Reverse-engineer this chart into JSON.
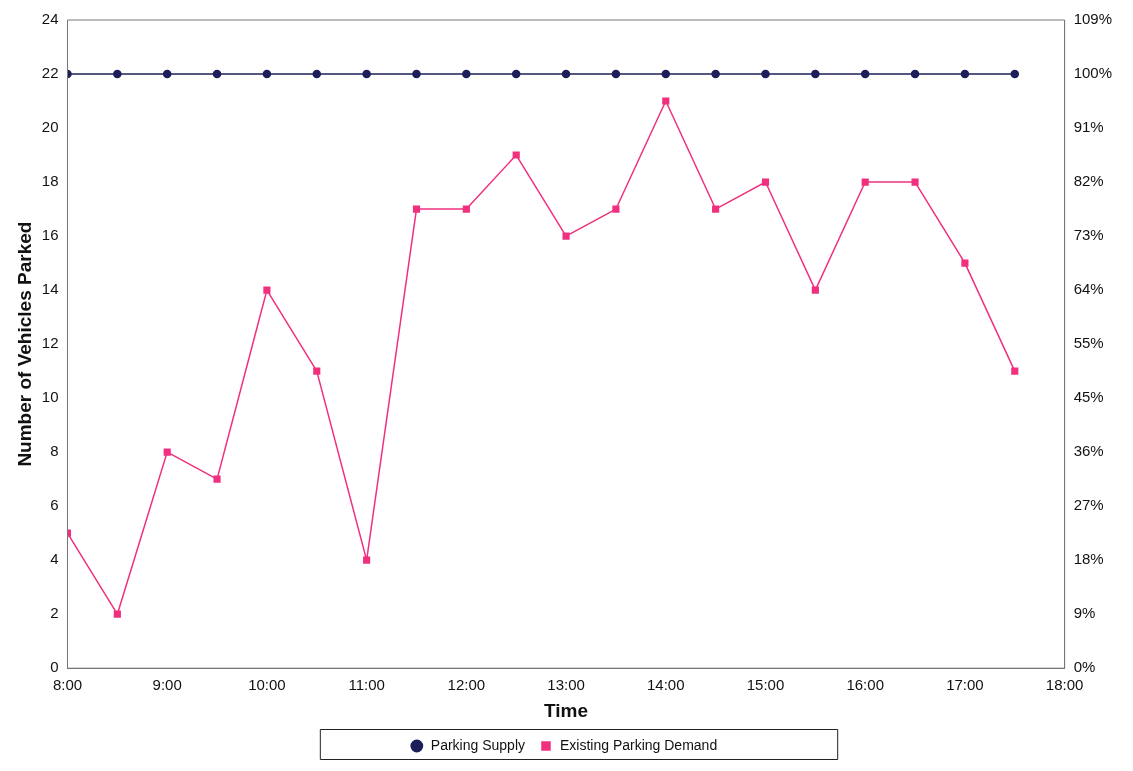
{
  "chart_data": {
    "type": "line",
    "xlabel": "Time",
    "ylabel": "Number of Vehicles Parked",
    "x": [
      8,
      8.5,
      9,
      9.5,
      10,
      10.5,
      11,
      11.5,
      12,
      12.5,
      13,
      13.5,
      14,
      14.5,
      15,
      15.5,
      16,
      16.5,
      17,
      17.5
    ],
    "series": [
      {
        "name": "Parking Supply",
        "color": "#1c1f5a",
        "marker": "circle",
        "values": [
          22,
          22,
          22,
          22,
          22,
          22,
          22,
          22,
          22,
          22,
          22,
          22,
          22,
          22,
          22,
          22,
          22,
          22,
          22,
          22
        ]
      },
      {
        "name": "Existing Parking Demand",
        "color": "#f0307f",
        "marker": "square",
        "values": [
          5,
          2,
          8,
          7,
          14,
          11,
          4,
          17,
          17,
          19,
          16,
          17,
          21,
          17,
          18,
          14,
          18,
          18,
          15,
          11
        ]
      }
    ],
    "xlim": [
      8,
      18
    ],
    "xticks": [
      {
        "value": 8,
        "label": "8:00"
      },
      {
        "value": 9,
        "label": "9:00"
      },
      {
        "value": 10,
        "label": "10:00"
      },
      {
        "value": 11,
        "label": "11:00"
      },
      {
        "value": 12,
        "label": "12:00"
      },
      {
        "value": 13,
        "label": "13:00"
      },
      {
        "value": 14,
        "label": "14:00"
      },
      {
        "value": 15,
        "label": "15:00"
      },
      {
        "value": 16,
        "label": "16:00"
      },
      {
        "value": 17,
        "label": "17:00"
      },
      {
        "value": 18,
        "label": "18:00"
      }
    ],
    "ylim": [
      0,
      24
    ],
    "yticks": [
      0,
      2,
      4,
      6,
      8,
      10,
      12,
      14,
      16,
      18,
      20,
      22,
      24
    ],
    "y2lim": [
      0,
      109.09
    ],
    "y2ticks": [
      {
        "value": 0,
        "label": "0%"
      },
      {
        "value": 9.09,
        "label": "9%"
      },
      {
        "value": 18.18,
        "label": "18%"
      },
      {
        "value": 27.27,
        "label": "27%"
      },
      {
        "value": 36.36,
        "label": "36%"
      },
      {
        "value": 45.45,
        "label": "45%"
      },
      {
        "value": 54.55,
        "label": "55%"
      },
      {
        "value": 63.64,
        "label": "64%"
      },
      {
        "value": 72.73,
        "label": "73%"
      },
      {
        "value": 81.82,
        "label": "82%"
      },
      {
        "value": 90.91,
        "label": "91%"
      },
      {
        "value": 100,
        "label": "100%"
      },
      {
        "value": 109.09,
        "label": "109%"
      }
    ],
    "grid": false,
    "legend": "bottom",
    "line_style": "solid"
  }
}
